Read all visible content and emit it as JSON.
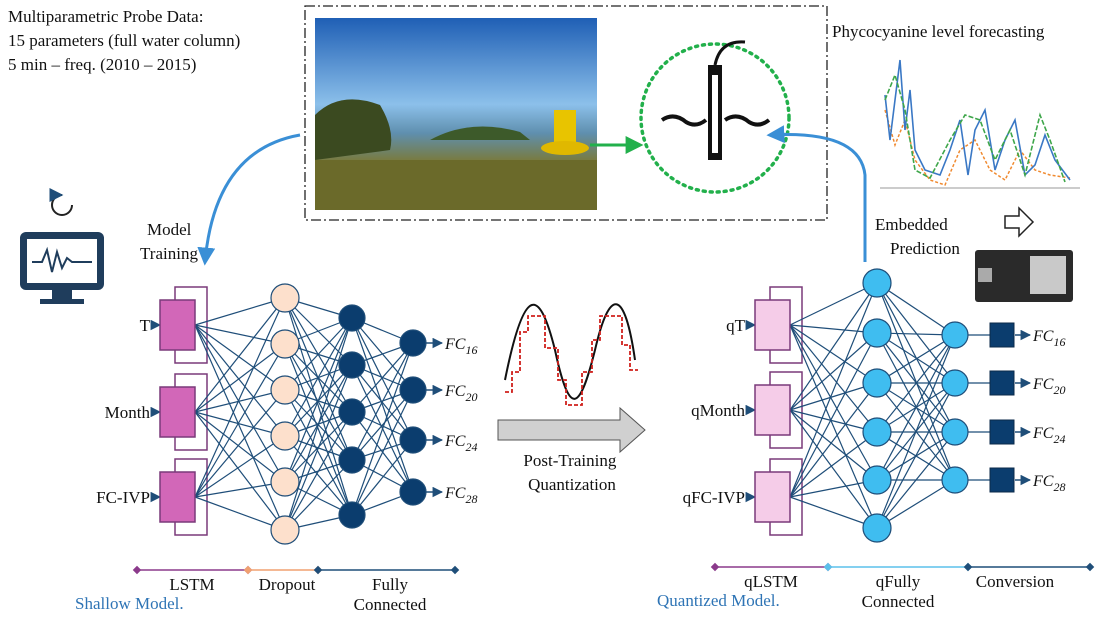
{
  "header": {
    "probe_data": [
      "Multiparametric Probe Data:",
      "15 parameters (full water column)",
      "5 min – freq. (2010 – 2015)"
    ],
    "forecast_title": "Phycocyanine level forecasting"
  },
  "annotations": {
    "model_training": [
      "Model",
      "Training"
    ],
    "embedded_prediction": [
      "Embedded",
      "Prediction"
    ],
    "quantization": [
      "Post-Training",
      "Quantization"
    ]
  },
  "shallow_model": {
    "title": "Shallow Model.",
    "inputs": [
      "T",
      "Month",
      "FC-IVP"
    ],
    "outputs": [
      {
        "base": "FC",
        "sub": "16"
      },
      {
        "base": "FC",
        "sub": "20"
      },
      {
        "base": "FC",
        "sub": "24"
      },
      {
        "base": "FC",
        "sub": "28"
      }
    ],
    "layers": [
      [
        "LSTM"
      ],
      [
        "Dropout"
      ],
      [
        "Fully",
        "Connected"
      ]
    ]
  },
  "quantized_model": {
    "title": "Quantized Model.",
    "inputs": [
      "qT",
      "qMonth",
      "qFC-IVP"
    ],
    "outputs": [
      {
        "base": "FC",
        "sub": "16"
      },
      {
        "base": "FC",
        "sub": "20"
      },
      {
        "base": "FC",
        "sub": "24"
      },
      {
        "base": "FC",
        "sub": "28"
      }
    ],
    "layers": [
      [
        "qLSTM"
      ],
      [
        "qFully",
        "Connected"
      ],
      [
        "Conversion"
      ]
    ]
  }
}
